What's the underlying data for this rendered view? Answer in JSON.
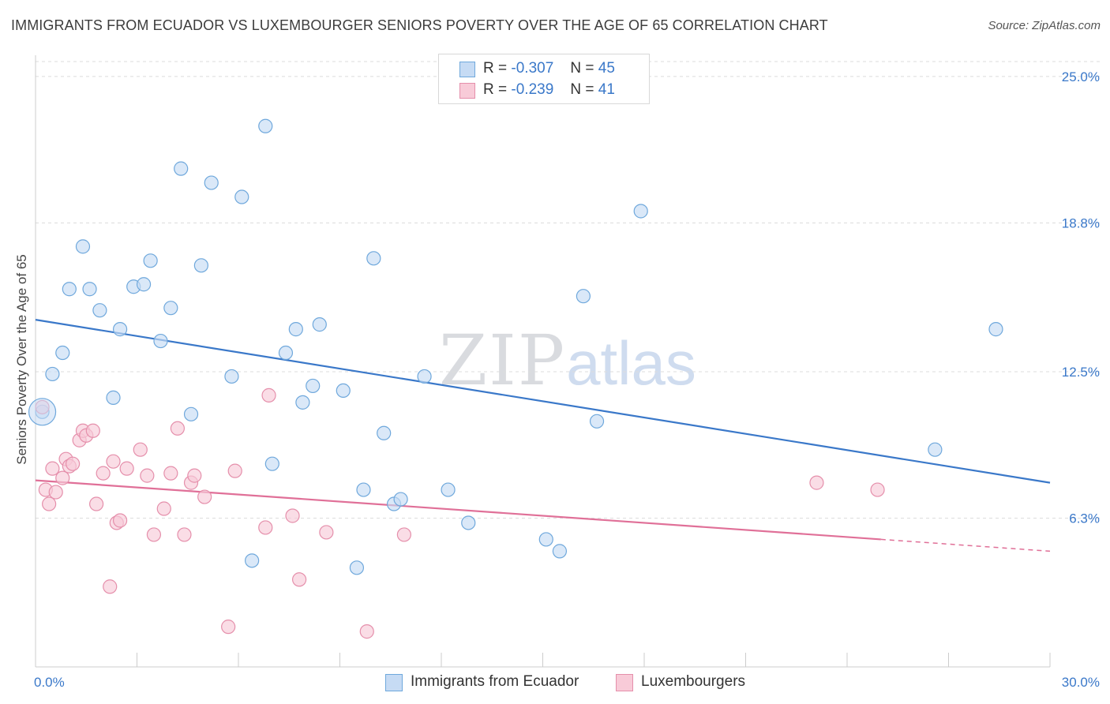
{
  "title": "IMMIGRANTS FROM ECUADOR VS LUXEMBOURGER SENIORS POVERTY OVER THE AGE OF 65 CORRELATION CHART",
  "source": "Source: ZipAtlas.com",
  "watermark": {
    "part1": "ZIP",
    "part2": "atlas"
  },
  "stats_legend": [
    {
      "r_label": "R =",
      "r_value": "-0.307",
      "n_label": "N =",
      "n_value": "45",
      "color": "#6fa8dc",
      "fill": "#c6dbf4"
    },
    {
      "r_label": "R =",
      "r_value": "-0.239",
      "n_label": "N =",
      "n_value": "41",
      "color": "#e58fab",
      "fill": "#f8cbd8"
    }
  ],
  "legend": [
    {
      "label": "Immigrants from Ecuador",
      "color": "#6fa8dc",
      "fill": "#c6dbf4"
    },
    {
      "label": "Luxembourgers",
      "color": "#e58fab",
      "fill": "#f8cbd8"
    }
  ],
  "chart_data": {
    "type": "scatter",
    "title": "IMMIGRANTS FROM ECUADOR VS LUXEMBOURGER SENIORS POVERTY OVER THE AGE OF 65 CORRELATION CHART",
    "xlabel": "",
    "ylabel": "Seniors Poverty Over the Age of 65",
    "xlim": [
      0,
      30
    ],
    "ylim": [
      0,
      25.9
    ],
    "x_tick_labels": [
      "0.0%",
      "30.0%"
    ],
    "y_ticks": [
      6.3,
      12.5,
      18.8,
      25.0
    ],
    "y_tick_labels": [
      "6.3%",
      "12.5%",
      "18.8%",
      "25.0%"
    ],
    "grid": true,
    "legend_position": "bottom-center",
    "series": [
      {
        "name": "Immigrants from Ecuador",
        "color": "#3a78c9",
        "marker_fill": "#c6dbf4",
        "marker_edge": "#6fa8dc",
        "trend": {
          "x0": 0,
          "y0": 14.7,
          "x1": 30,
          "y1": 7.8
        },
        "points": [
          [
            0.2,
            10.8
          ],
          [
            0.5,
            12.4
          ],
          [
            0.8,
            13.3
          ],
          [
            1.0,
            16.0
          ],
          [
            1.4,
            17.8
          ],
          [
            1.6,
            16.0
          ],
          [
            1.9,
            15.1
          ],
          [
            2.3,
            11.4
          ],
          [
            2.5,
            14.3
          ],
          [
            2.9,
            16.1
          ],
          [
            3.2,
            16.2
          ],
          [
            3.4,
            17.2
          ],
          [
            3.7,
            13.8
          ],
          [
            4.0,
            15.2
          ],
          [
            4.3,
            21.1
          ],
          [
            4.6,
            10.7
          ],
          [
            4.9,
            17.0
          ],
          [
            5.2,
            20.5
          ],
          [
            5.8,
            12.3
          ],
          [
            6.1,
            19.9
          ],
          [
            6.4,
            4.5
          ],
          [
            6.8,
            22.9
          ],
          [
            7.0,
            8.6
          ],
          [
            7.4,
            13.3
          ],
          [
            7.7,
            14.3
          ],
          [
            7.9,
            11.2
          ],
          [
            8.2,
            11.9
          ],
          [
            8.4,
            14.5
          ],
          [
            9.1,
            11.7
          ],
          [
            9.5,
            4.2
          ],
          [
            9.7,
            7.5
          ],
          [
            10.0,
            17.3
          ],
          [
            10.3,
            9.9
          ],
          [
            10.6,
            6.9
          ],
          [
            10.8,
            7.1
          ],
          [
            11.5,
            12.3
          ],
          [
            12.2,
            7.5
          ],
          [
            12.8,
            6.1
          ],
          [
            15.1,
            5.4
          ],
          [
            15.5,
            4.9
          ],
          [
            16.2,
            15.7
          ],
          [
            16.6,
            10.4
          ],
          [
            17.9,
            19.3
          ],
          [
            26.6,
            9.2
          ],
          [
            28.4,
            14.3
          ]
        ]
      },
      {
        "name": "Luxembourgers",
        "color": "#e07098",
        "marker_fill": "#f8cbd8",
        "marker_edge": "#e58fab",
        "trend": {
          "x0": 0,
          "y0": 7.9,
          "x1": 25.0,
          "y1": 5.4,
          "dash_to_x": 30,
          "dash_to_y": 4.9
        },
        "points": [
          [
            0.2,
            11.0
          ],
          [
            0.3,
            7.5
          ],
          [
            0.4,
            6.9
          ],
          [
            0.5,
            8.4
          ],
          [
            0.6,
            7.4
          ],
          [
            0.8,
            8.0
          ],
          [
            0.9,
            8.8
          ],
          [
            1.0,
            8.5
          ],
          [
            1.1,
            8.6
          ],
          [
            1.3,
            9.6
          ],
          [
            1.4,
            10.0
          ],
          [
            1.5,
            9.8
          ],
          [
            1.7,
            10.0
          ],
          [
            1.8,
            6.9
          ],
          [
            2.0,
            8.2
          ],
          [
            2.2,
            3.4
          ],
          [
            2.3,
            8.7
          ],
          [
            2.4,
            6.1
          ],
          [
            2.5,
            6.2
          ],
          [
            2.7,
            8.4
          ],
          [
            3.1,
            9.2
          ],
          [
            3.3,
            8.1
          ],
          [
            3.5,
            5.6
          ],
          [
            3.8,
            6.7
          ],
          [
            4.0,
            8.2
          ],
          [
            4.2,
            10.1
          ],
          [
            4.4,
            5.6
          ],
          [
            4.6,
            7.8
          ],
          [
            4.7,
            8.1
          ],
          [
            5.0,
            7.2
          ],
          [
            5.7,
            1.7
          ],
          [
            5.9,
            8.3
          ],
          [
            6.8,
            5.9
          ],
          [
            6.9,
            11.5
          ],
          [
            7.6,
            6.4
          ],
          [
            7.8,
            3.7
          ],
          [
            8.6,
            5.7
          ],
          [
            9.8,
            1.5
          ],
          [
            10.9,
            5.6
          ],
          [
            23.1,
            7.8
          ],
          [
            24.9,
            7.5
          ]
        ]
      }
    ]
  }
}
